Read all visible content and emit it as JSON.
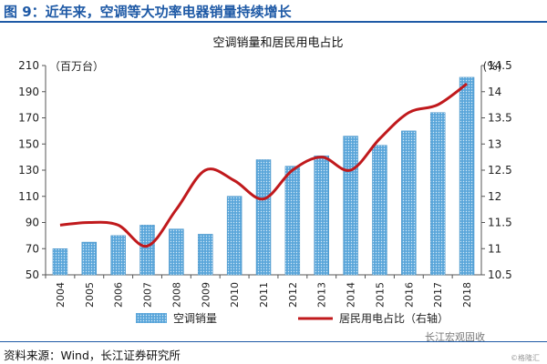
{
  "header": {
    "title": "图 9：近年来，空调等大功率电器销量持续增长"
  },
  "footer": {
    "source": "资料来源：Wind，长江证券研究所"
  },
  "watermark": {
    "text": "长江宏观固收",
    "small": "©格隆汇"
  },
  "chart_data": {
    "type": "bar",
    "title": "空调销量和居民用电占比",
    "left_unit": "（百万台）",
    "right_unit": "(%)",
    "categories": [
      "2004",
      "2005",
      "2006",
      "2007",
      "2008",
      "2009",
      "2010",
      "2011",
      "2012",
      "2013",
      "2014",
      "2015",
      "2016",
      "2017",
      "2018"
    ],
    "series": [
      {
        "name": "空调销量",
        "type": "bar",
        "axis": "left",
        "values": [
          70,
          75,
          80,
          88,
          85,
          81,
          110,
          138,
          133,
          141,
          156,
          149,
          160,
          174,
          201
        ]
      },
      {
        "name": "居民用电占比（右轴）",
        "type": "line",
        "axis": "right",
        "values": [
          11.45,
          11.5,
          11.45,
          11.05,
          11.75,
          12.5,
          12.3,
          11.95,
          12.5,
          12.75,
          12.5,
          13.1,
          13.6,
          13.75,
          14.15
        ]
      }
    ],
    "ylim_left": [
      50,
      210
    ],
    "yticks_left": [
      50,
      70,
      90,
      110,
      130,
      150,
      170,
      190,
      210
    ],
    "ylim_right": [
      10.5,
      14.5
    ],
    "yticks_right": [
      "10.5",
      "11",
      "11.5",
      "12",
      "12.5",
      "13",
      "13.5",
      "14",
      "14.5"
    ],
    "legend_position": "bottom",
    "colors": {
      "bar": "#4a9bd0",
      "line": "#c0191c",
      "axis": "#555555"
    }
  }
}
